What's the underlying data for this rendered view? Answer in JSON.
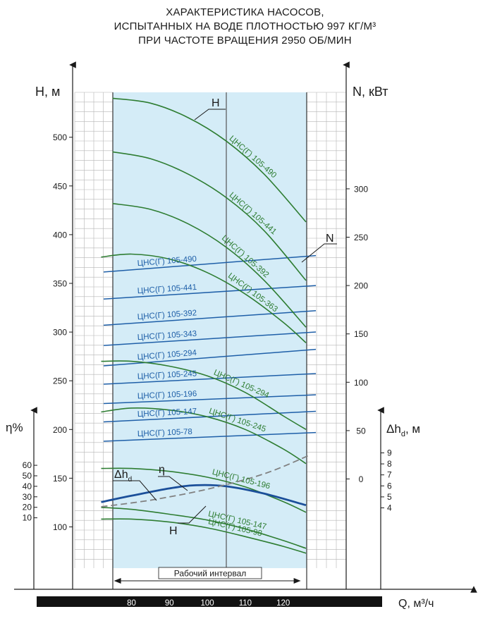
{
  "title_lines": [
    "ХАРАКТЕРИСТИКА НАСОСОВ,",
    "ИСПЫТАННЫХ НА ВОДЕ ПЛОТНОСТЬЮ 997 КГ/М³",
    "ПРИ ЧАСТОТЕ ВРАЩЕНИЯ 2950 ОБ/МИН"
  ],
  "colors": {
    "head_curves": "#2e7d32",
    "power_lines": "#1e5fa8",
    "efficiency": "#1b4f9a",
    "npsh": "#808080",
    "band": "#d4ecf7",
    "grid": "#b5b5b5"
  },
  "chart_data": {
    "type": "line",
    "x_axis": {
      "label": "Q, м³/ч",
      "ticks": [
        80,
        90,
        100,
        110,
        120
      ],
      "range": [
        75,
        126
      ]
    },
    "y_axis_H": {
      "label": "Н, м",
      "ticks": [
        100,
        150,
        200,
        250,
        300,
        350,
        400,
        450,
        500
      ],
      "range": [
        50,
        550
      ]
    },
    "y_axis_N": {
      "label": "N, кВт",
      "ticks": [
        0,
        50,
        100,
        150,
        200,
        250,
        300
      ]
    },
    "y_axis_eta": {
      "label": "η%",
      "ticks": [
        10,
        20,
        30,
        40,
        50,
        60
      ]
    },
    "y_axis_npsh": {
      "label": "Δh",
      "subscript": "d",
      "unit": ", м",
      "ticks": [
        4,
        5,
        6,
        7,
        8,
        9
      ]
    },
    "working_interval": {
      "label": "Рабочий интервал",
      "q_min": 75,
      "q_max": 125
    },
    "q_reference_line": 105,
    "curve_markers": {
      "H": "Н",
      "N": "N",
      "eta": "η",
      "npsh": "Δh",
      "npsh_sub": "d"
    },
    "head_curves": [
      {
        "name": "ЦНС(Г) 105-490",
        "q": [
          75,
          85,
          95,
          105,
          115,
          126
        ],
        "h": [
          540,
          535,
          520,
          496,
          462,
          413
        ]
      },
      {
        "name": "ЦНС(Г) 105-441",
        "q": [
          75,
          85,
          95,
          105,
          115,
          126
        ],
        "h": [
          485,
          478,
          462,
          438,
          404,
          353
        ]
      },
      {
        "name": "ЦНС(Г) 105-392",
        "q": [
          75,
          85,
          95,
          105,
          115,
          126
        ],
        "h": [
          432,
          426,
          411,
          387,
          353,
          305
        ]
      },
      {
        "name": "ЦНС(Г) 105-363",
        "q": [
          72,
          80,
          90,
          100,
          110,
          120,
          126
        ],
        "h": [
          377,
          380,
          375,
          361,
          339,
          310,
          289
        ]
      },
      {
        "name": "ЦНС(Г) 105-294",
        "q": [
          72,
          80,
          90,
          100,
          110,
          120,
          126
        ],
        "h": [
          270,
          270,
          265,
          255,
          238,
          214,
          200
        ]
      },
      {
        "name": "ЦНС(Г) 105-245",
        "q": [
          72,
          80,
          90,
          100,
          110,
          120,
          126
        ],
        "h": [
          218,
          222,
          220,
          213,
          200,
          180,
          165
        ]
      },
      {
        "name": "ЦНС(Г) 105-196",
        "q": [
          72,
          80,
          90,
          100,
          110,
          120,
          126
        ],
        "h": [
          160,
          160,
          157,
          151,
          141,
          126,
          115
        ]
      },
      {
        "name": "ЦНС(Г) 105-147",
        "q": [
          72,
          80,
          90,
          100,
          110,
          120,
          126
        ],
        "h": [
          120,
          118,
          113,
          107,
          98,
          86,
          78
        ]
      },
      {
        "name": "ЦНС(Г) 105-98",
        "q": [
          72,
          80,
          90,
          100,
          110,
          120,
          126
        ],
        "h": [
          108,
          108,
          105,
          99,
          90,
          80,
          73
        ]
      }
    ],
    "power_lines": [
      {
        "name": "ЦНС(Г) 105-490",
        "n_start": 214,
        "n_end": 231
      },
      {
        "name": "ЦНС(Г) 105-441",
        "n_start": 186,
        "n_end": 200
      },
      {
        "name": "ЦНС(Г) 105-392",
        "n_start": 159,
        "n_end": 174
      },
      {
        "name": "ЦНС(Г) 105-343",
        "n_start": 138,
        "n_end": 152
      },
      {
        "name": "ЦНС(Г) 105-294",
        "n_start": 117,
        "n_end": 134
      },
      {
        "name": "ЦНС(Г) 105-245",
        "n_start": 98,
        "n_end": 109
      },
      {
        "name": "ЦНС(Г) 105-196",
        "n_start": 78,
        "n_end": 87
      },
      {
        "name": "ЦНС(Г) 105-147",
        "n_start": 59,
        "n_end": 70
      },
      {
        "name": "ЦНС(Г) 105-78",
        "n_start": 39,
        "n_end": 48
      }
    ],
    "efficiency_curve": {
      "q": [
        72,
        80,
        90,
        97,
        105,
        115,
        126
      ],
      "eta": [
        25,
        31,
        38,
        41,
        40,
        33,
        22
      ]
    },
    "npsh_curve": {
      "q": [
        72,
        85,
        100,
        115,
        127
      ],
      "npsh": [
        4.1,
        4.7,
        5.7,
        7.1,
        8.8
      ]
    }
  }
}
